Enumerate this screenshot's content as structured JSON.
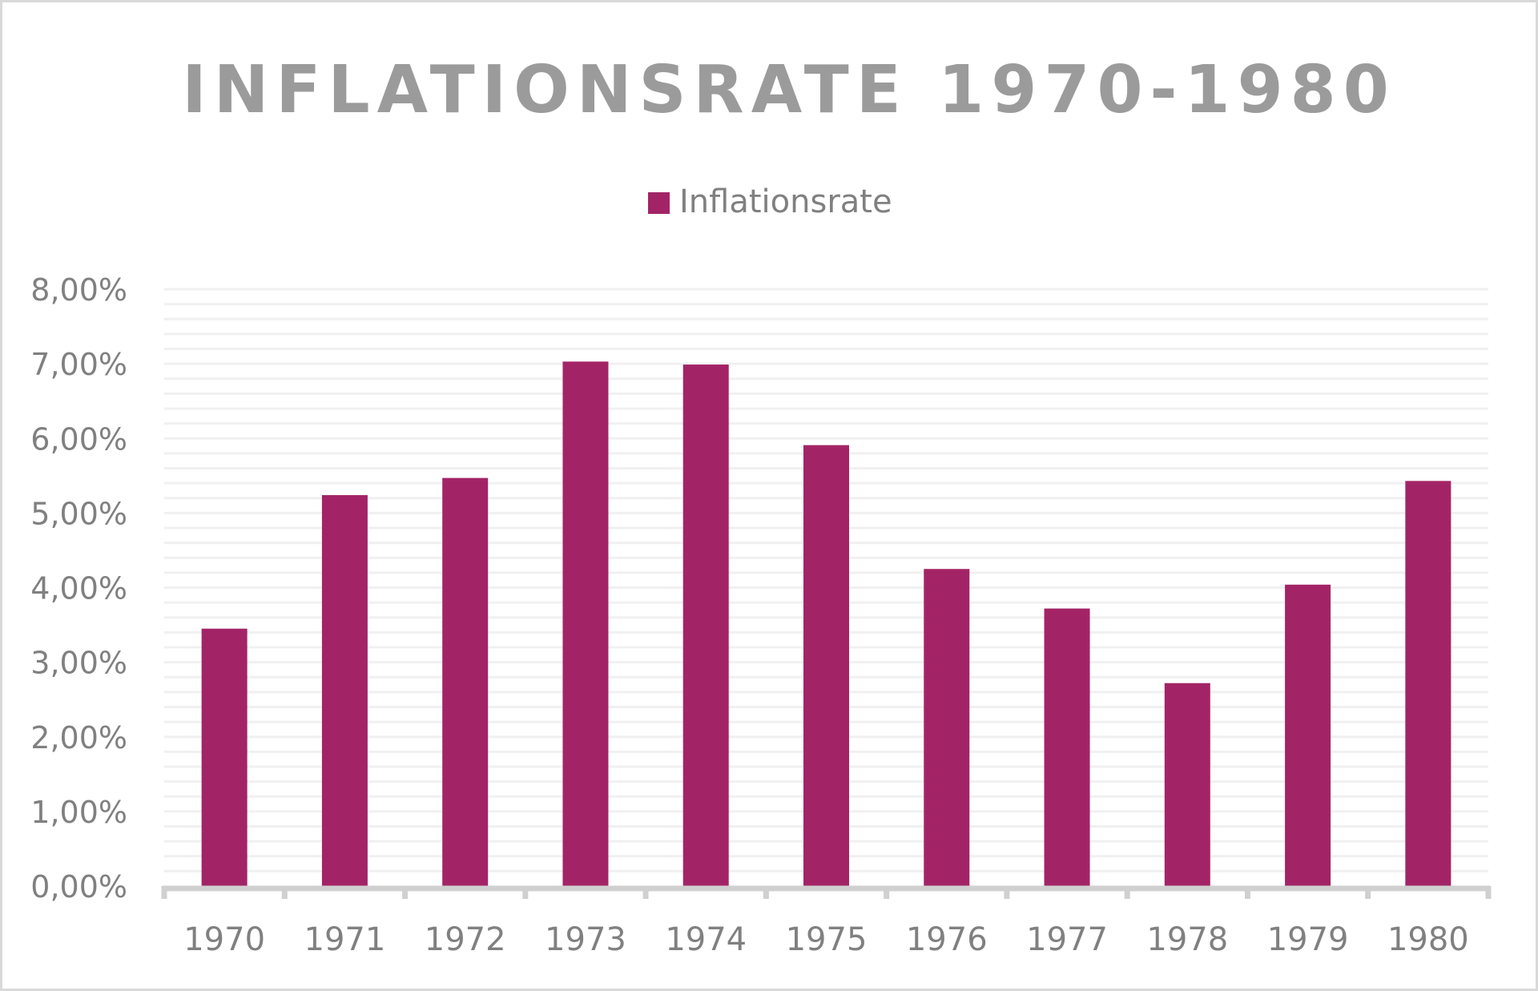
{
  "chart_data": {
    "type": "bar",
    "title": "INFLATIONSRATE 1970-1980",
    "xlabel": "",
    "ylabel": "",
    "categories": [
      "1970",
      "1971",
      "1972",
      "1973",
      "1974",
      "1975",
      "1976",
      "1977",
      "1978",
      "1979",
      "1980"
    ],
    "series": [
      {
        "name": "Inflationsrate",
        "values": [
          3.45,
          5.24,
          5.47,
          7.03,
          6.99,
          5.91,
          4.25,
          3.72,
          2.72,
          4.04,
          5.43
        ]
      }
    ],
    "ylim": [
      0,
      8
    ],
    "yticks": [
      "0,00%",
      "1,00%",
      "2,00%",
      "3,00%",
      "4,00%",
      "5,00%",
      "6,00%",
      "7,00%",
      "8,00%"
    ],
    "minor_grid_step": 0.2,
    "grid": true,
    "legend": "top-center",
    "colors": {
      "bar": "#A32466",
      "text": "#808080",
      "title": "#9B9B9B",
      "axis": "#D0D0D0",
      "grid": "#F0F0F0",
      "border": "#D9D9D9"
    }
  }
}
